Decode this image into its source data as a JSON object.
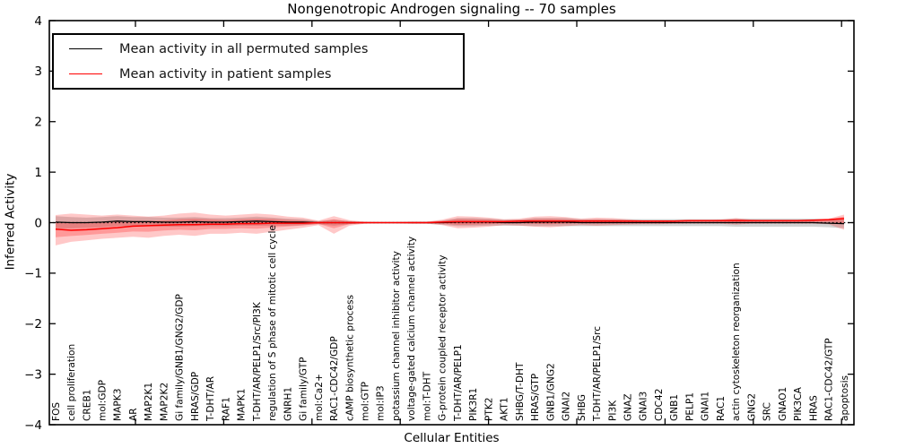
{
  "chart_data": {
    "type": "line",
    "title": "Nongenotropic Androgen signaling -- 70 samples",
    "xlabel": "Cellular Entities",
    "ylabel": "Inferred Activity",
    "ylim": [
      -4,
      4
    ],
    "yticks": [
      4,
      3,
      2,
      1,
      0,
      -1,
      -2,
      -3,
      -4
    ],
    "grid": false,
    "zero_line": true,
    "legend_position": "upper left",
    "legend": [
      {
        "label": "Mean activity in all permuted samples",
        "color": "#000000"
      },
      {
        "label": "Mean activity in patient samples",
        "color": "#ff0000"
      }
    ],
    "categories": [
      "FOS",
      "cell proliferation",
      "CREB1",
      "mol:GDP",
      "MAPK3",
      "AR",
      "MAP2K1",
      "MAP2K2",
      "Gi family/GNB1/GNG2/GDP",
      "HRAS/GDP",
      "T-DHT/AR",
      "RAF1",
      "MAPK1",
      "T-DHT/AR/PELP1/Src/PI3K",
      "regulation of S phase of mitotic cell cycle",
      "GNRH1",
      "Gi family/GTP",
      "mol:Ca2+",
      "RAC1-CDC42/GDP",
      "cAMP biosynthetic process",
      "mol:GTP",
      "mol:IP3",
      "potassium channel inhibitor activity",
      "voltage-gated calcium channel activity",
      "mol:T-DHT",
      "G-protein coupled receptor activity",
      "T-DHT/AR/PELP1",
      "PIK3R1",
      "PTK2",
      "AKT1",
      "SHBG/T-DHT",
      "HRAS/GTP",
      "GNB1/GNG2",
      "GNAI2",
      "SHBG",
      "T-DHT/AR/PELP1/Src",
      "PI3K",
      "GNAZ",
      "GNAI3",
      "CDC42",
      "GNB1",
      "PELP1",
      "GNAI1",
      "RAC1",
      "actin cytoskeleton reorganization",
      "GNG2",
      "SRC",
      "GNAO1",
      "PIK3CA",
      "HRAS",
      "RAC1-CDC42/GTP",
      "apoptosis"
    ],
    "series": [
      {
        "name": "Mean activity in all permuted samples",
        "color": "#000000",
        "width": 1.3,
        "values": [
          0.01,
          0.0,
          0.0,
          0.01,
          0.03,
          0.02,
          0.02,
          0.01,
          0.01,
          0.02,
          0.01,
          0.01,
          0.02,
          0.03,
          0.02,
          0.01,
          0.01,
          0.0,
          0.0,
          0.0,
          0.0,
          0.0,
          0.0,
          0.0,
          0.0,
          0.0,
          0.01,
          0.01,
          0.01,
          0.0,
          0.0,
          0.01,
          0.01,
          0.01,
          0.0,
          0.0,
          0.0,
          0.0,
          0.0,
          0.0,
          0.0,
          0.0,
          0.0,
          0.0,
          0.0,
          0.0,
          0.0,
          0.0,
          0.0,
          0.0,
          -0.01,
          -0.02
        ]
      },
      {
        "name": "Mean activity in patient samples",
        "color": "#ff0000",
        "width": 1.5,
        "values": [
          -0.13,
          -0.15,
          -0.14,
          -0.12,
          -0.1,
          -0.07,
          -0.06,
          -0.05,
          -0.04,
          -0.04,
          -0.03,
          -0.03,
          -0.02,
          -0.02,
          -0.01,
          -0.01,
          -0.01,
          0.0,
          0.0,
          0.0,
          0.0,
          0.0,
          0.0,
          0.0,
          0.0,
          0.01,
          0.02,
          0.02,
          0.02,
          0.02,
          0.03,
          0.03,
          0.03,
          0.03,
          0.03,
          0.03,
          0.03,
          0.03,
          0.03,
          0.03,
          0.03,
          0.04,
          0.04,
          0.04,
          0.04,
          0.04,
          0.04,
          0.04,
          0.04,
          0.05,
          0.06,
          0.08
        ]
      }
    ],
    "bands": [
      {
        "name": "permuted-std-band",
        "color": "#888888",
        "opacity": 0.38,
        "upper": [
          0.13,
          0.11,
          0.1,
          0.11,
          0.13,
          0.11,
          0.11,
          0.1,
          0.1,
          0.11,
          0.09,
          0.09,
          0.1,
          0.12,
          0.1,
          0.08,
          0.07,
          0.03,
          0.06,
          0.03,
          0.01,
          0.01,
          0.01,
          0.02,
          0.02,
          0.04,
          0.09,
          0.09,
          0.08,
          0.06,
          0.06,
          0.09,
          0.09,
          0.09,
          0.07,
          0.07,
          0.07,
          0.07,
          0.07,
          0.07,
          0.07,
          0.07,
          0.07,
          0.07,
          0.08,
          0.08,
          0.08,
          0.08,
          0.08,
          0.08,
          0.07,
          0.07
        ],
        "lower": [
          -0.11,
          -0.11,
          -0.1,
          -0.09,
          -0.07,
          -0.07,
          -0.07,
          -0.08,
          -0.08,
          -0.07,
          -0.07,
          -0.07,
          -0.06,
          -0.06,
          -0.06,
          -0.06,
          -0.05,
          -0.03,
          -0.06,
          -0.03,
          -0.01,
          -0.01,
          -0.01,
          -0.02,
          -0.02,
          -0.04,
          -0.07,
          -0.07,
          -0.06,
          -0.06,
          -0.06,
          -0.07,
          -0.07,
          -0.07,
          -0.07,
          -0.07,
          -0.07,
          -0.07,
          -0.07,
          -0.07,
          -0.07,
          -0.07,
          -0.07,
          -0.07,
          -0.08,
          -0.08,
          -0.08,
          -0.08,
          -0.08,
          -0.08,
          -0.09,
          -0.11
        ]
      },
      {
        "name": "patient-std-outer-band",
        "color": "#ff2222",
        "opacity": 0.25,
        "upper": [
          0.15,
          0.18,
          0.16,
          0.14,
          0.16,
          0.14,
          0.12,
          0.14,
          0.18,
          0.2,
          0.16,
          0.14,
          0.16,
          0.18,
          0.16,
          0.12,
          0.1,
          0.04,
          0.13,
          0.05,
          0.02,
          0.01,
          0.01,
          0.02,
          0.02,
          0.06,
          0.13,
          0.12,
          0.1,
          0.07,
          0.08,
          0.12,
          0.13,
          0.11,
          0.08,
          0.1,
          0.09,
          0.07,
          0.05,
          0.05,
          0.05,
          0.05,
          0.05,
          0.06,
          0.09,
          0.06,
          0.05,
          0.05,
          0.05,
          0.06,
          0.08,
          0.16
        ],
        "lower": [
          -0.45,
          -0.38,
          -0.35,
          -0.32,
          -0.3,
          -0.28,
          -0.3,
          -0.26,
          -0.24,
          -0.26,
          -0.22,
          -0.22,
          -0.2,
          -0.22,
          -0.18,
          -0.14,
          -0.1,
          -0.05,
          -0.22,
          -0.06,
          -0.02,
          -0.01,
          -0.01,
          -0.02,
          -0.02,
          -0.05,
          -0.11,
          -0.1,
          -0.08,
          -0.05,
          -0.06,
          -0.08,
          -0.09,
          -0.07,
          -0.05,
          -0.06,
          -0.05,
          -0.04,
          -0.03,
          -0.03,
          -0.02,
          -0.02,
          -0.02,
          -0.02,
          -0.04,
          -0.02,
          -0.02,
          -0.02,
          -0.02,
          -0.02,
          -0.03,
          -0.14
        ]
      },
      {
        "name": "patient-std-inner-band",
        "color": "#ff2222",
        "opacity": 0.28,
        "upper": [
          0.01,
          0.015,
          0.01,
          0.01,
          0.03,
          0.035,
          0.03,
          0.045,
          0.07,
          0.08,
          0.065,
          0.055,
          0.07,
          0.08,
          0.075,
          0.055,
          0.045,
          0.02,
          0.065,
          0.025,
          0.01,
          0.005,
          0.005,
          0.01,
          0.01,
          0.035,
          0.075,
          0.07,
          0.06,
          0.045,
          0.055,
          0.075,
          0.08,
          0.07,
          0.055,
          0.065,
          0.06,
          0.05,
          0.04,
          0.04,
          0.04,
          0.045,
          0.045,
          0.05,
          0.065,
          0.05,
          0.045,
          0.045,
          0.045,
          0.055,
          0.07,
          0.12
        ],
        "lower": [
          -0.29,
          -0.265,
          -0.245,
          -0.22,
          -0.2,
          -0.175,
          -0.18,
          -0.155,
          -0.14,
          -0.15,
          -0.125,
          -0.125,
          -0.11,
          -0.12,
          -0.095,
          -0.075,
          -0.055,
          -0.025,
          -0.11,
          -0.03,
          -0.01,
          -0.005,
          -0.005,
          -0.01,
          -0.01,
          -0.02,
          -0.045,
          -0.04,
          -0.03,
          -0.015,
          -0.015,
          -0.025,
          -0.03,
          -0.02,
          -0.01,
          -0.015,
          -0.01,
          -0.005,
          0.0,
          0.0,
          0.005,
          0.01,
          0.01,
          0.01,
          0.0,
          0.01,
          0.01,
          0.01,
          0.01,
          0.015,
          0.015,
          -0.03
        ]
      }
    ]
  }
}
